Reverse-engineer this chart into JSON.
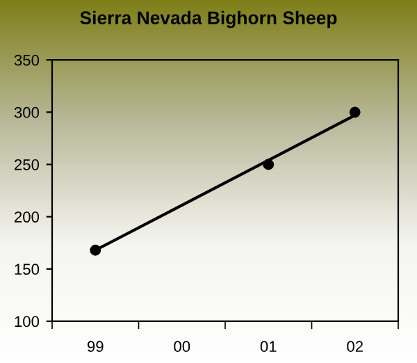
{
  "chart_data": {
    "type": "scatter",
    "title": "Sierra Nevada Bighorn Sheep",
    "categories": [
      "99",
      "00",
      "01",
      "02"
    ],
    "series": [
      {
        "color": "#000000",
        "marker": "circle",
        "values": [
          168,
          null,
          250,
          300
        ]
      },
      {
        "type": "line",
        "color": "#000000",
        "x": [
          "99",
          "02"
        ],
        "values": [
          168,
          297
        ]
      }
    ],
    "ylim": [
      100,
      350
    ],
    "yticks": [
      100,
      150,
      200,
      250,
      300,
      350
    ],
    "grid": false,
    "legend": false
  }
}
